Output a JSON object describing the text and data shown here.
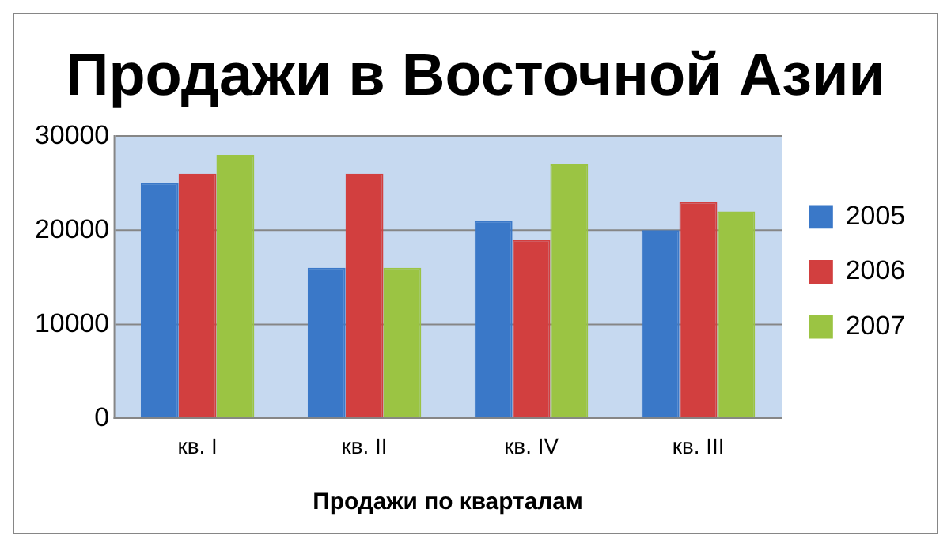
{
  "chart_data": {
    "type": "bar",
    "title": "Продажи в Восточной Азии",
    "xlabel": "Продажи по кварталам",
    "categories": [
      "кв. I",
      "кв. II",
      "кв. IV",
      "кв. III"
    ],
    "series": [
      {
        "name": "2005",
        "color": "#3a78c8",
        "values": [
          25000,
          16000,
          21000,
          20000
        ]
      },
      {
        "name": "2006",
        "color": "#d23f3f",
        "values": [
          26000,
          26000,
          19000,
          23000
        ]
      },
      {
        "name": "2007",
        "color": "#9bc443",
        "values": [
          28000,
          16000,
          27000,
          22000
        ]
      }
    ],
    "ylim": [
      0,
      30000
    ],
    "yticks": [
      0,
      10000,
      20000,
      30000
    ],
    "grid": "y",
    "legend": "right"
  }
}
